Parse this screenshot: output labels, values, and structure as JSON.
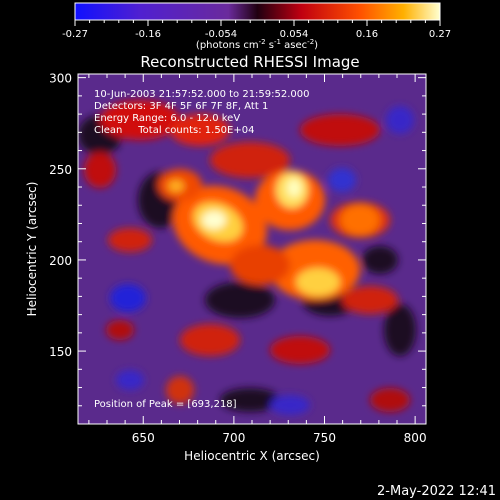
{
  "colorbar": {
    "ticks": [
      "-0.27",
      "-0.16",
      "-0.054",
      "0.054",
      "0.16",
      "0.27"
    ],
    "unit_prefix": "(photons cm",
    "unit_exp1": "-2",
    "unit_mid1": " s",
    "unit_exp2": "-1",
    "unit_mid2": " asec",
    "unit_exp3": "-2",
    "unit_suffix": ")",
    "min": -0.27,
    "max": 0.27
  },
  "plot": {
    "title": "Reconstructed RHESSI Image",
    "info": [
      "10-Jun-2003 21:57:52.000 to 21:59:52.000",
      "Detectors: 3F 4F 5F 6F 7F 8F, Att 1",
      "Energy Range: 6.0 - 12.0 keV",
      "Clean     Total counts: 1.50E+04"
    ],
    "peak_text": "Position of Peak = [693,218]",
    "xlabel": "Heliocentric X (arcsec)",
    "ylabel": "Heliocentric Y (arcsec)",
    "x_ticks": [
      {
        "value": 650,
        "label": "650"
      },
      {
        "value": 700,
        "label": "700"
      },
      {
        "value": 750,
        "label": "750"
      },
      {
        "value": 800,
        "label": "800"
      }
    ],
    "y_ticks": [
      {
        "value": 150,
        "label": "150"
      },
      {
        "value": 200,
        "label": "200"
      },
      {
        "value": 250,
        "label": "250"
      },
      {
        "value": 300,
        "label": "300"
      }
    ],
    "xlim": [
      614,
      806
    ],
    "ylim": [
      110,
      302
    ],
    "peak": [
      693,
      218
    ]
  },
  "timestamp": "2-May-2022 12:41"
}
